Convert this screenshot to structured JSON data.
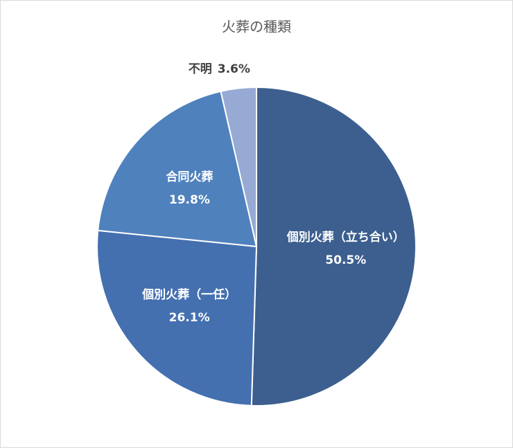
{
  "chart_data": {
    "type": "pie",
    "title": "火葬の種類",
    "categories": [
      "個別火葬（立ち合い）",
      "個別火葬（一任）",
      "合同火葬",
      "不明"
    ],
    "values": [
      50.5,
      26.1,
      19.8,
      3.6
    ],
    "value_labels": [
      "50.5%",
      "26.1%",
      "19.8%",
      "3.6%"
    ],
    "colors": [
      "#3c5f8f",
      "#4470b0",
      "#4f81bd",
      "#97aad4"
    ]
  }
}
